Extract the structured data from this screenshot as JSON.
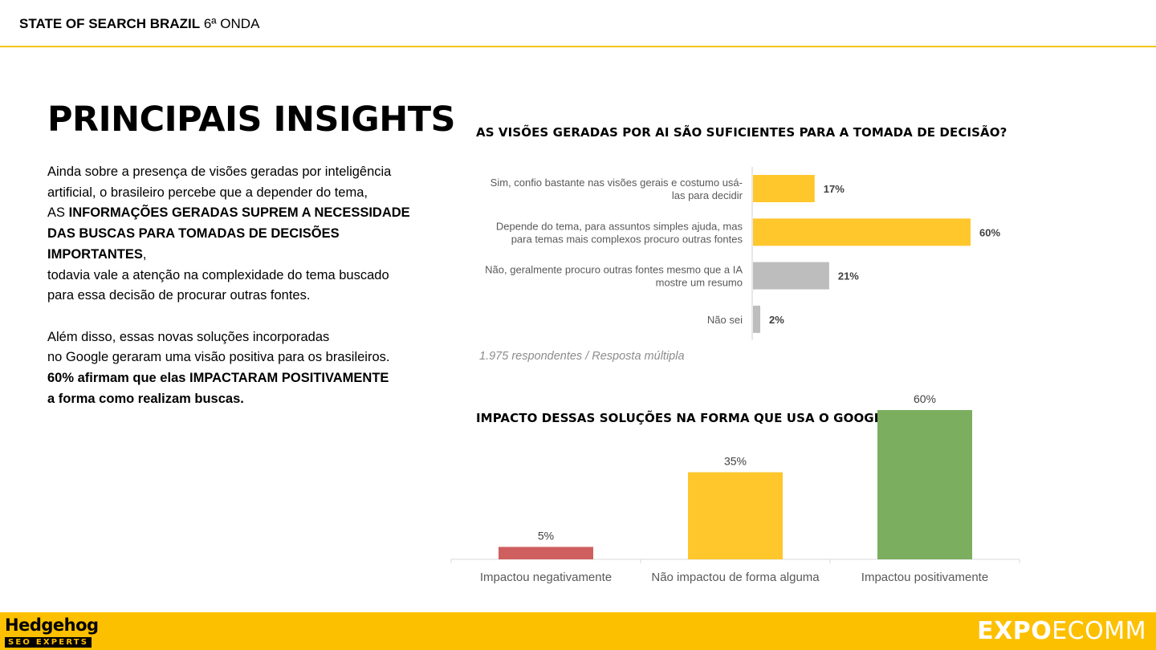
{
  "header": {
    "title_bold": "STATE OF SEARCH BRAZIL",
    "title_rest": "6ª ONDA"
  },
  "main": {
    "title": "PRINCIPAIS INSIGHTS",
    "p1_l1": "Ainda sobre a presença de visões geradas por inteligência",
    "p1_l2": "artificial, o brasileiro percebe que a depender do tema,",
    "p1_l3a": "AS ",
    "p1_l3b": "INFORMAÇÕES GERADAS SUPREM A NECESSIDADE",
    "p1_l4a": "DAS BUSCAS PARA TOMADAS DE DECISÕES IMPORTANTES",
    "p1_l4b": ",",
    "p1_l5": "todavia vale a atenção na complexidade do tema buscado",
    "p1_l6": "para essa decisão de procurar outras fontes.",
    "p2_l1": "Além disso, essas novas soluções incorporadas",
    "p2_l2": "no Google geraram uma visão positiva para os brasileiros.",
    "p2_l3": "60% afirmam que elas IMPACTARAM POSITIVAMENTE",
    "p2_l4": "a forma como realizam buscas."
  },
  "chart_data": [
    {
      "type": "bar",
      "orientation": "horizontal",
      "title": "AS VISÕES GERADAS POR AI SÃO SUFICIENTES PARA A TOMADA DE DECISÃO?",
      "categories": [
        [
          "Sim, confio bastante nas visões gerais e costumo usá-",
          "las para decidir"
        ],
        [
          "Depende do tema, para assuntos simples ajuda, mas",
          "para temas mais complexos procuro outras fontes"
        ],
        [
          "Não, geralmente procuro outras fontes mesmo que a IA",
          "mostre um resumo"
        ],
        [
          "Não sei"
        ]
      ],
      "values": [
        17,
        60,
        21,
        2
      ],
      "labels": [
        "17%",
        "60%",
        "21%",
        "2%"
      ],
      "colors": [
        "#ffc72c",
        "#ffc72c",
        "#bdbdbd",
        "#bdbdbd"
      ],
      "xlim": [
        0,
        60
      ],
      "note": "1.975 respondentes / Resposta múltipla"
    },
    {
      "type": "bar",
      "orientation": "vertical",
      "title": "IMPACTO DESSAS SOLUÇÕES NA FORMA QUE USA O GOOGLE",
      "categories": [
        "Impactou negativamente",
        "Não impactou de forma alguma",
        "Impactou positivamente"
      ],
      "values": [
        5,
        35,
        60
      ],
      "labels": [
        "5%",
        "35%",
        "60%"
      ],
      "colors": [
        "#cf5f5f",
        "#ffc72c",
        "#7bae5f"
      ],
      "ylim": [
        0,
        60
      ]
    }
  ],
  "footer": {
    "left_logo_name": "Hedgehog",
    "left_logo_tag": "SEO EXPERTS",
    "right_logo_bold": "EXPO",
    "right_logo_rest": "ECOMM"
  }
}
